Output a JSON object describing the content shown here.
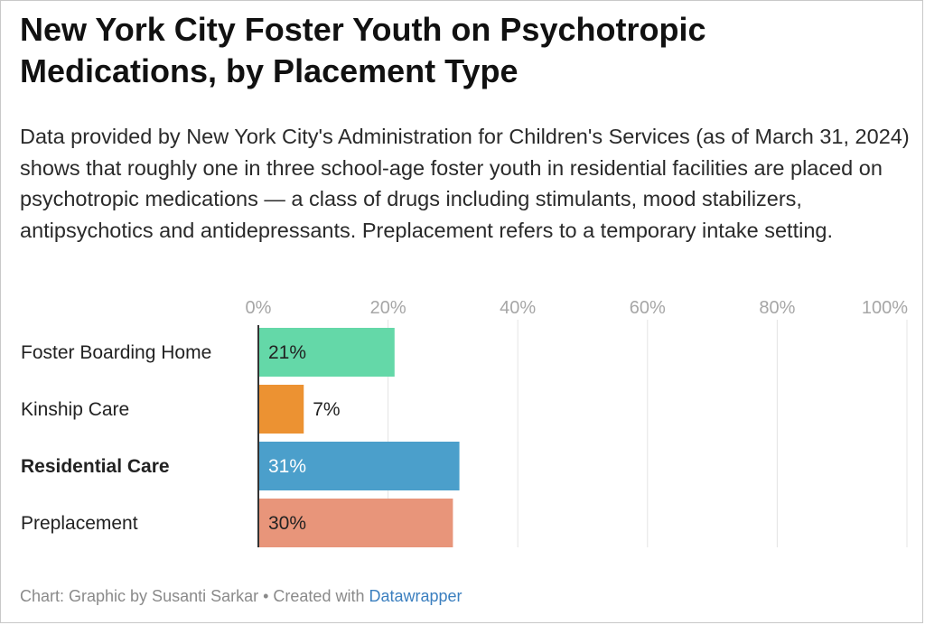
{
  "title": "New York City Foster Youth on Psychotropic Medications, by Placement Type",
  "description": "Data provided by New York City's Administration for Children's Services (as of March 31, 2024) shows that roughly one in three school-age foster youth in residential facilities are placed on psychotropic medications — a class of drugs including stimulants, mood stabilizers, antipsychotics and antidepressants. Preplacement refers to a temporary intake setting.",
  "footer": {
    "prefix": "Chart: Graphic by Susanti Sarkar • Created with ",
    "link_text": "Datawrapper"
  },
  "chart_data": {
    "type": "bar",
    "orientation": "horizontal",
    "categories": [
      "Foster Boarding Home",
      "Kinship Care",
      "Residential Care",
      "Preplacement"
    ],
    "values": [
      21,
      7,
      31,
      30
    ],
    "value_labels": [
      "21%",
      "7%",
      "31%",
      "30%"
    ],
    "colors": [
      "#64d8a8",
      "#ec9232",
      "#4b9fcb",
      "#e8957a"
    ],
    "bold_category": "Residential Care",
    "xlim": [
      0,
      100
    ],
    "xticks": [
      0,
      20,
      40,
      60,
      80,
      100
    ],
    "xtick_labels": [
      "0%",
      "20%",
      "40%",
      "60%",
      "80%",
      "100%"
    ],
    "grid": true,
    "axis_position": "top"
  }
}
